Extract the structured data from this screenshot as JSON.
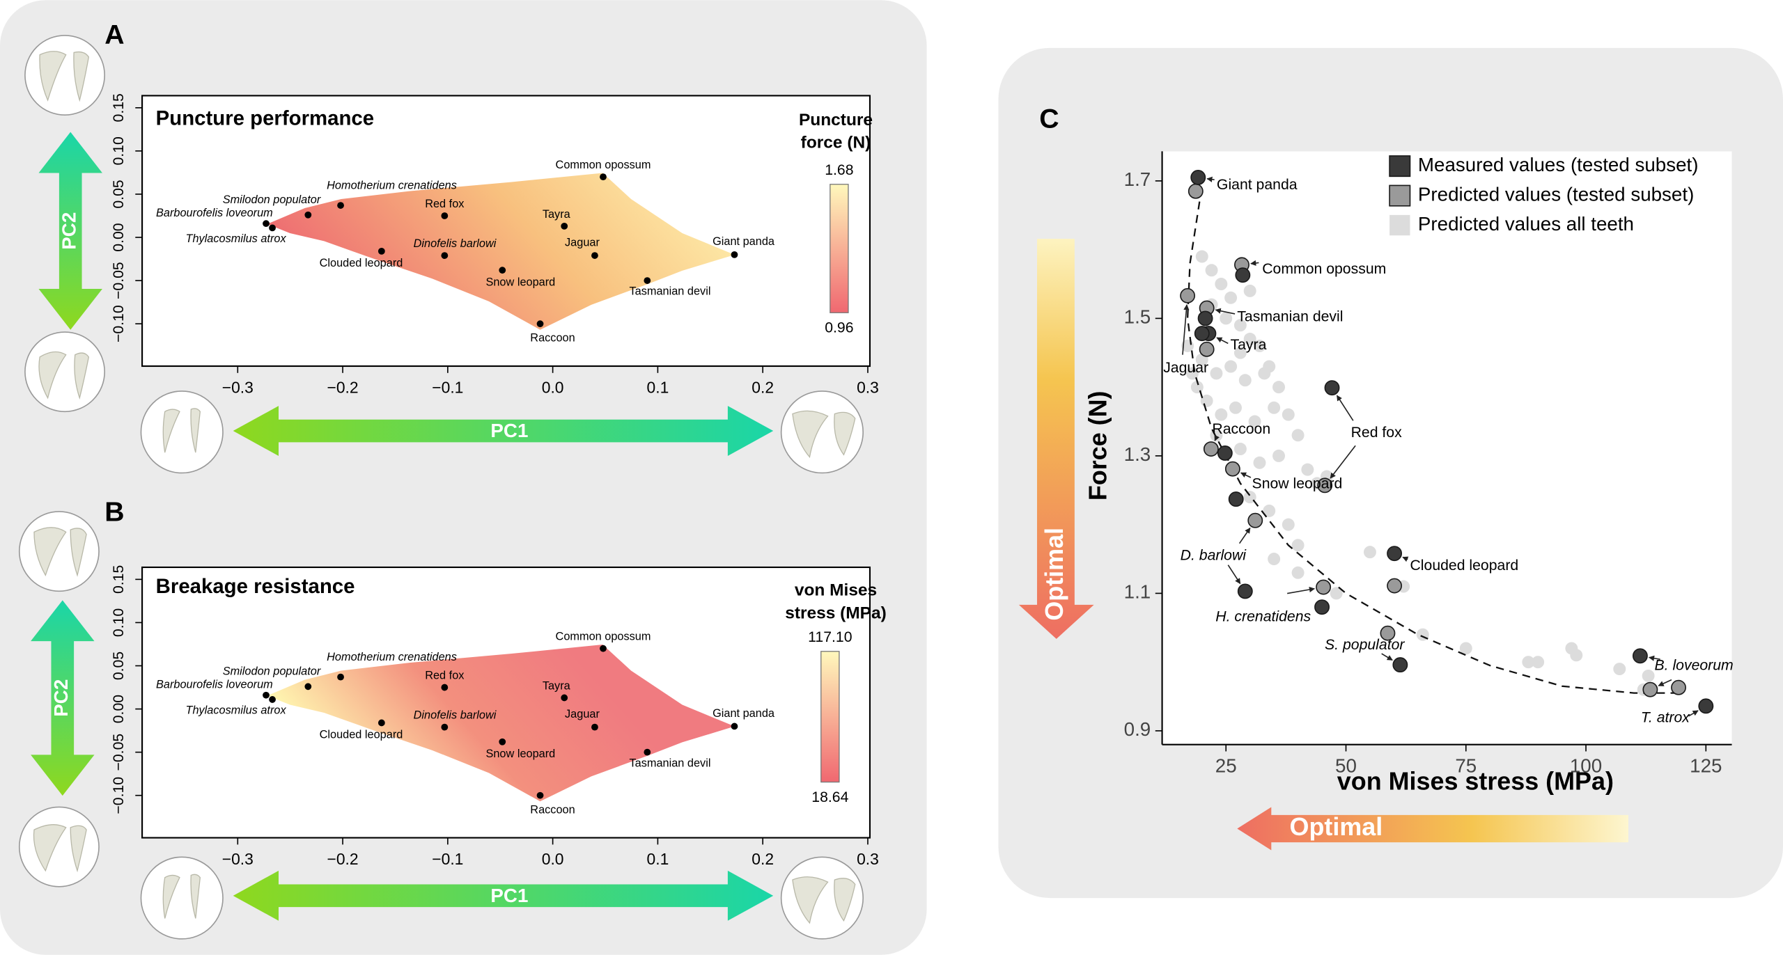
{
  "chart_data": [
    {
      "type": "scatter",
      "panel": "A",
      "title": "Puncture performance",
      "colorbar_title": [
        "Puncture",
        "force (N)"
      ],
      "colorbar_ticks": [
        0.96,
        1.68
      ],
      "colorbar_colors": [
        "#f06870",
        "#fff8bc"
      ],
      "field_colors": [
        "#ee6f72",
        "#f8c07e",
        "#fff6b4"
      ],
      "xlabel": "PC1",
      "ylabel": "PC2",
      "color": "#000000",
      "xlim": [
        -0.391,
        0.302
      ],
      "ylim": [
        -0.149,
        0.164
      ],
      "xticks": [
        {
          "value": -0.3,
          "label": "−0.3"
        },
        {
          "value": -0.2,
          "label": "−0.2"
        },
        {
          "value": -0.1,
          "label": "−0.1"
        },
        {
          "value": 0,
          "label": "0.0"
        },
        0.1,
        0.2,
        0.3
      ],
      "yticks": [
        {
          "value": -0.1,
          "label": "−0.10"
        },
        {
          "value": -0.05,
          "label": "−0.05"
        },
        {
          "value": 0,
          "label": "0.00"
        },
        0.05,
        {
          "value": 0.1,
          "label": "0.10"
        },
        0.15
      ],
      "labels": [
        "Common opossum",
        "Tayra",
        "Jaguar",
        "Giant panda",
        "Tasmanian devil",
        "Snow leopard",
        "Raccoon",
        "Red fox",
        "Dinofelis barlowi",
        "Clouded leopard",
        "Homotherium crenatidens",
        "Smilodon populator",
        "Barbourofelis loveorum",
        "Thylacosmilus atrox"
      ],
      "x": [
        0.048,
        0.011,
        0.04,
        0.173,
        0.09,
        -0.048,
        -0.012,
        -0.103,
        -0.103,
        -0.163,
        -0.202,
        -0.233,
        -0.273,
        -0.267
      ],
      "y": [
        0.07,
        0.013,
        -0.021,
        -0.02,
        -0.05,
        -0.038,
        -0.1,
        0.025,
        -0.021,
        -0.016,
        0.037,
        0.026,
        0.016,
        0.011
      ],
      "italic": [
        false,
        false,
        false,
        false,
        false,
        false,
        false,
        false,
        true,
        false,
        true,
        true,
        true,
        true
      ]
    },
    {
      "type": "scatter",
      "panel": "B",
      "title": "Breakage resistance",
      "colorbar_title": [
        "von Mises",
        "stress (MPa)"
      ],
      "colorbar_ticks": [
        18.64,
        {
          "value": 117.1,
          "label": "117.10"
        }
      ],
      "colorbar_colors": [
        "#f06870",
        "#fff8bc"
      ],
      "field_colors": [
        "#fff6b0",
        "#f3907e",
        "#f07b80",
        "#f07b80"
      ],
      "xlabel": "PC1",
      "ylabel": "PC2",
      "color": "#000000",
      "xlim": [
        -0.391,
        0.302
      ],
      "ylim": [
        -0.149,
        0.164
      ],
      "xticks": [
        {
          "value": -0.3,
          "label": "−0.3"
        },
        {
          "value": -0.2,
          "label": "−0.2"
        },
        {
          "value": -0.1,
          "label": "−0.1"
        },
        {
          "value": 0,
          "label": "0.0"
        },
        0.1,
        0.2,
        0.3
      ],
      "yticks": [
        {
          "value": -0.1,
          "label": "−0.10"
        },
        {
          "value": -0.05,
          "label": "−0.05"
        },
        {
          "value": 0,
          "label": "0.00"
        },
        0.05,
        {
          "value": 0.1,
          "label": "0.10"
        },
        0.15
      ],
      "labels": [
        "Common opossum",
        "Tayra",
        "Jaguar",
        "Giant panda",
        "Tasmanian devil",
        "Snow leopard",
        "Raccoon",
        "Red fox",
        "Dinofelis barlowi",
        "Clouded leopard",
        "Homotherium crenatidens",
        "Smilodon populator",
        "Barbourofelis loveorum",
        "Thylacosmilus atrox"
      ],
      "x": [
        0.048,
        0.011,
        0.04,
        0.173,
        0.09,
        -0.048,
        -0.012,
        -0.103,
        -0.103,
        -0.163,
        -0.202,
        -0.233,
        -0.273,
        -0.267
      ],
      "y": [
        0.07,
        0.013,
        -0.021,
        -0.02,
        -0.05,
        -0.038,
        -0.1,
        0.025,
        -0.021,
        -0.016,
        0.037,
        0.026,
        0.016,
        0.011
      ],
      "italic": [
        false,
        false,
        false,
        false,
        false,
        false,
        false,
        false,
        true,
        false,
        true,
        true,
        true,
        true
      ]
    },
    {
      "type": "scatter_pairs",
      "panel": "C",
      "xlabel": "von Mises stress (MPa)",
      "ylabel": "Force (N)",
      "xlim": [
        11.7,
        130.4
      ],
      "ylim": [
        0.88,
        1.743
      ],
      "xticks": [
        25,
        50,
        75,
        100,
        125
      ],
      "yticks": [
        0.9,
        1.1,
        1.3,
        1.5,
        1.7
      ],
      "legend": "upper right",
      "annotations": [
        "Optimal",
        "Optimal"
      ],
      "labels": [
        "Giant panda",
        "Common opossum",
        "Tasmanian devil",
        "Tayra",
        "Jaguar",
        "Red fox",
        "Raccoon",
        "Snow leopard",
        "D. barlowi",
        "Clouded leopard",
        "H. crenatidens",
        "S. populator",
        "B. loveorum",
        "T. atrox"
      ],
      "italic": [
        false,
        false,
        false,
        false,
        false,
        false,
        false,
        false,
        true,
        false,
        true,
        true,
        true,
        true
      ],
      "series": [
        {
          "name": "Measured values (tested subset)",
          "color": "#3a3a3a",
          "x": [
            19.2,
            28.5,
            20.7,
            21.4,
            20.0,
            47.1,
            24.8,
            27.1,
            29.0,
            60.1,
            45.0,
            61.3,
            111.3,
            125.0
          ],
          "y": [
            1.705,
            1.563,
            1.5,
            1.478,
            1.478,
            1.399,
            1.304,
            1.237,
            1.103,
            1.158,
            1.08,
            0.996,
            1.009,
            0.936
          ]
        },
        {
          "name": "Predicted values (tested subset)",
          "color": "#9a9a9a",
          "x": [
            18.7,
            28.3,
            21.0,
            21.0,
            17.0,
            45.6,
            21.9,
            26.4,
            31.1,
            60.1,
            45.3,
            58.7,
            113.4,
            119.3
          ],
          "y": [
            1.685,
            1.578,
            1.515,
            1.455,
            1.533,
            1.257,
            1.31,
            1.281,
            1.206,
            1.111,
            1.109,
            1.042,
            0.96,
            0.963
          ]
        },
        {
          "name": "Predicted values all teeth",
          "color": "#dcdcdc",
          "x": [
            20,
            22,
            24,
            26,
            30,
            22,
            25,
            28,
            30,
            32,
            20,
            23,
            26,
            29,
            33,
            36,
            21,
            24,
            27,
            31,
            35,
            38,
            40,
            19,
            23,
            28,
            32,
            36,
            42,
            44,
            46,
            30,
            34,
            38,
            40,
            35,
            40,
            48,
            55,
            62,
            66,
            75,
            88,
            90,
            97,
            98,
            107,
            113,
            112,
            17,
            18,
            34,
            28
          ],
          "y": [
            1.59,
            1.57,
            1.55,
            1.53,
            1.54,
            1.52,
            1.5,
            1.49,
            1.47,
            1.46,
            1.44,
            1.42,
            1.43,
            1.41,
            1.42,
            1.4,
            1.38,
            1.36,
            1.37,
            1.35,
            1.37,
            1.36,
            1.33,
            1.4,
            1.33,
            1.31,
            1.29,
            1.3,
            1.28,
            1.26,
            1.27,
            1.24,
            1.22,
            1.2,
            1.17,
            1.15,
            1.13,
            1.1,
            1.16,
            1.11,
            1.04,
            1.02,
            1.0,
            1.0,
            1.02,
            1.01,
            0.99,
            0.98,
            0.96,
            1.46,
            1.42,
            1.43,
            1.45
          ]
        }
      ],
      "curve": {
        "x": [
          19.5,
          17.5,
          17.0,
          18.5,
          22,
          28,
          38,
          50,
          65,
          80,
          95,
          110,
          120
        ],
        "y": [
          1.67,
          1.58,
          1.5,
          1.42,
          1.34,
          1.26,
          1.17,
          1.1,
          1.04,
          0.995,
          0.965,
          0.955,
          0.955
        ]
      }
    }
  ]
}
